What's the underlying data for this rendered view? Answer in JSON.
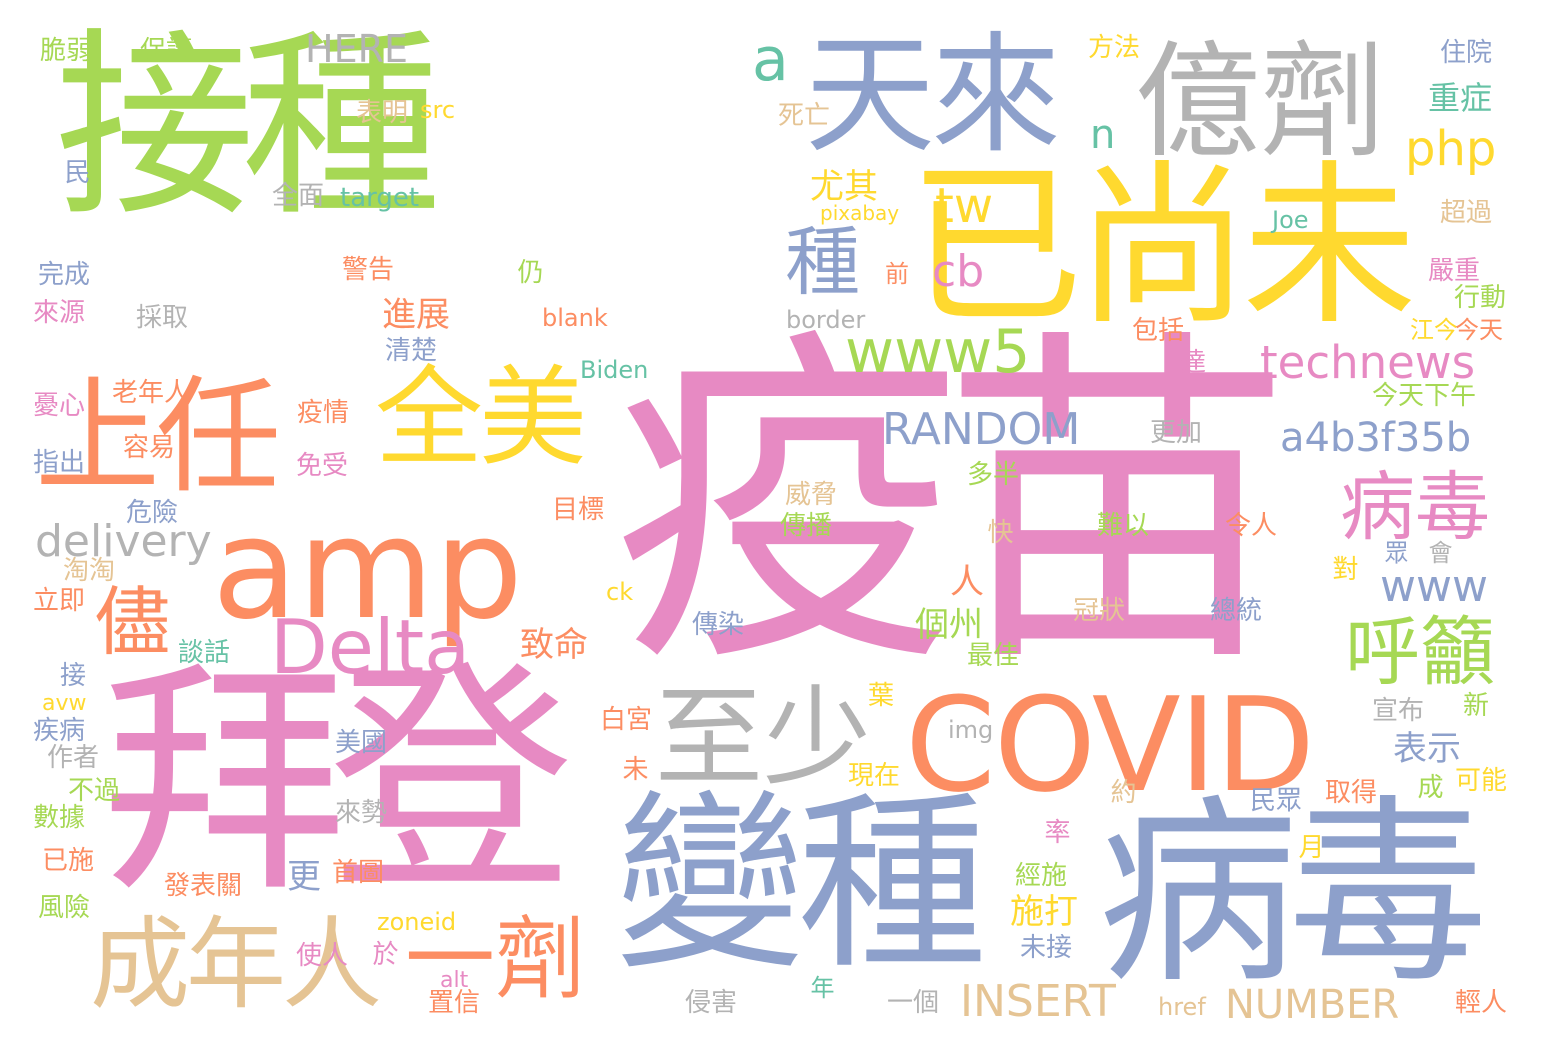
{
  "palette": {
    "green": "#a6d854",
    "pink": "#e78ac3",
    "blue": "#8da0cb",
    "orange": "#fc8d62",
    "yellow": "#ffd92f",
    "tan": "#e5c494",
    "gray": "#b3b3b3",
    "teal": "#66c2a5"
  },
  "words": [
    "接種",
    "疫苗",
    "拜登",
    "變種",
    "病毒",
    "已尚未",
    "天來",
    "億劑",
    "amp",
    "COVID",
    "上任",
    "全美",
    "成年人",
    "一劑",
    "至少",
    "Delta",
    "a",
    "儘",
    "病毒",
    "呼籲",
    "www5",
    "種",
    "technews",
    "a4b3f35b",
    "RANDOM",
    "delivery",
    "INSERT",
    "NUMBER",
    "www",
    "php",
    "tw",
    "cb",
    "n",
    "尤其",
    "HERE",
    "進展",
    "人",
    "個州",
    "致命",
    "表示",
    "施打",
    "更",
    "重症",
    "住院",
    "方法",
    "脆弱",
    "保護",
    "表明",
    "src",
    "死亡",
    "target",
    "pixabay",
    "Joe",
    "超過",
    "全面",
    "民",
    "完成",
    "警告",
    "仍",
    "嚴重",
    "行動",
    "來源",
    "採取",
    "blank",
    "border",
    "包括",
    "江今",
    "今天",
    "清楚",
    "Biden",
    "達",
    "今天下午",
    "老年人",
    "疫情",
    "憂心",
    "免受",
    "容易",
    "更加",
    "指出",
    "威脅",
    "難以",
    "令人",
    "多半",
    "危險",
    "目標",
    "傳播",
    "快",
    "眾",
    "會",
    "對",
    "立即",
    "淘淘",
    "ck",
    "冠狀",
    "總統",
    "傳染",
    "談話",
    "最佳",
    "接",
    "葉",
    "avw",
    "宣布",
    "新",
    "疾病",
    "白宮",
    "img",
    "作者",
    "美國",
    "不過",
    "未",
    "現在",
    "可能",
    "成",
    "數據",
    "來勢",
    "約",
    "民眾",
    "取得",
    "已施",
    "率",
    "月",
    "首圖",
    "經施",
    "發表關",
    "風險",
    "zoneid",
    "使人",
    "於",
    "未接",
    "alt",
    "置信",
    "年",
    "侵害",
    "一個",
    "href",
    "輕人",
    "前"
  ]
}
